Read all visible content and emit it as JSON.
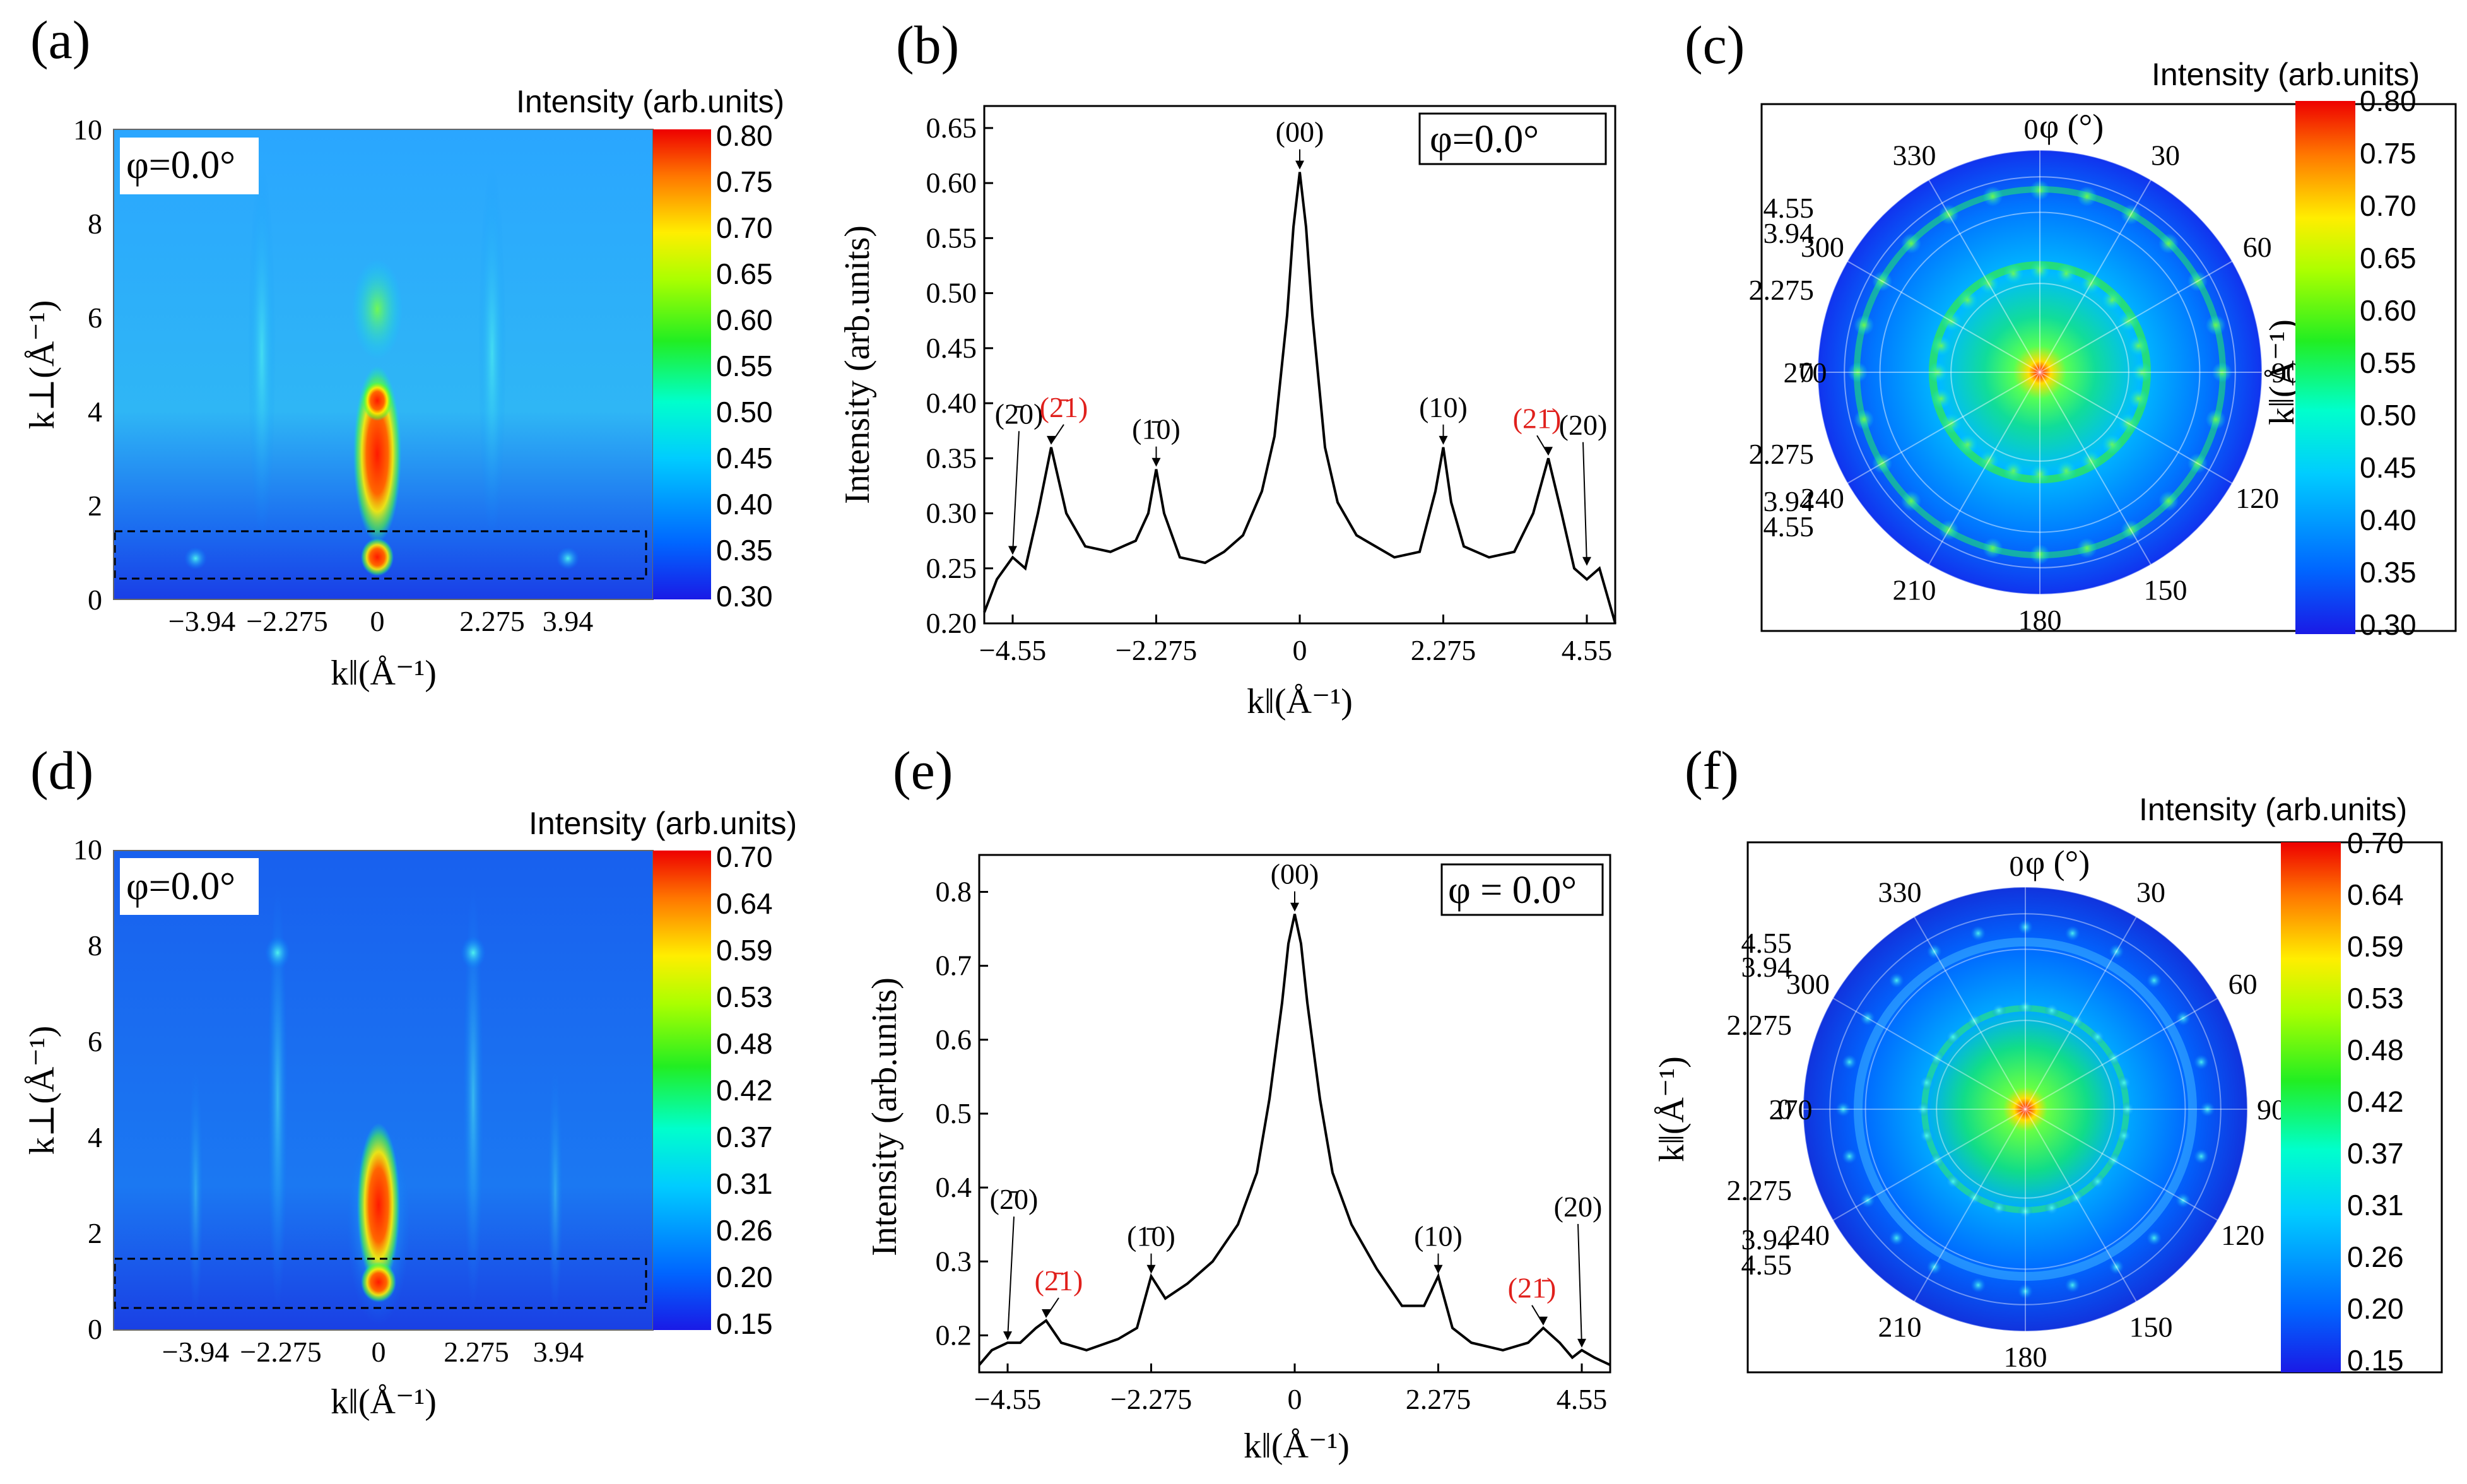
{
  "figure": {
    "panels": [
      {
        "id": "a",
        "label": "(a)",
        "phi": "φ=0.0°",
        "cbar_title": "Intensity (arb.units)",
        "cbar_ticks": [
          "0.80",
          "0.75",
          "0.70",
          "0.65",
          "0.60",
          "0.55",
          "0.50",
          "0.45",
          "0.40",
          "0.35",
          "0.30"
        ],
        "xlabel": "k‖(Å⁻¹)",
        "ylabel": "k⊥(Å⁻¹)",
        "xticks": [
          "−3.94",
          "−2.275",
          "0",
          "2.275",
          "3.94"
        ],
        "yticks": [
          "0",
          "2",
          "4",
          "6",
          "8",
          "10"
        ]
      },
      {
        "id": "b",
        "label": "(b)",
        "phi": "φ=0.0°",
        "xlabel": "k‖(Å⁻¹)",
        "ylabel": "Intensity (arb.units)",
        "xticks": [
          "−4.55",
          "−2.275",
          "0",
          "2.275",
          "4.55"
        ],
        "yticks": [
          "0.20",
          "0.25",
          "0.30",
          "0.35",
          "0.40",
          "0.45",
          "0.50",
          "0.55",
          "0.60",
          "0.65"
        ]
      },
      {
        "id": "c",
        "label": "(c)",
        "cbar_title": "Intensity (arb.units)",
        "cbar_ticks": [
          "0.80",
          "0.75",
          "0.70",
          "0.65",
          "0.60",
          "0.55",
          "0.50",
          "0.45",
          "0.40",
          "0.35",
          "0.30"
        ],
        "angle_title": "φ (°)",
        "angles": [
          "0",
          "30",
          "60",
          "90",
          "120",
          "150",
          "180",
          "210",
          "240",
          "270",
          "300",
          "330"
        ],
        "radial_ticks": [
          "4.55",
          "3.94",
          "2.275",
          "0",
          "2.275",
          "3.94",
          "4.55"
        ],
        "radial_label": "k‖(Å⁻¹)"
      },
      {
        "id": "d",
        "label": "(d)",
        "phi": "φ=0.0°",
        "cbar_title": "Intensity (arb.units)",
        "cbar_ticks": [
          "0.70",
          "0.64",
          "0.59",
          "0.53",
          "0.48",
          "0.42",
          "0.37",
          "0.31",
          "0.26",
          "0.20",
          "0.15"
        ],
        "xlabel": "k‖(Å⁻¹)",
        "ylabel": "k⊥(Å⁻¹)",
        "xticks": [
          "−3.94",
          "−2.275",
          "0",
          "2.275",
          "3.94"
        ],
        "yticks": [
          "0",
          "2",
          "4",
          "6",
          "8",
          "10"
        ]
      },
      {
        "id": "e",
        "label": "(e)",
        "phi": "φ = 0.0°",
        "xlabel": "k‖(Å⁻¹)",
        "ylabel": "Intensity (arb.units)",
        "xticks": [
          "−4.55",
          "−2.275",
          "0",
          "2.275",
          "4.55"
        ],
        "yticks": [
          "0.2",
          "0.3",
          "0.4",
          "0.5",
          "0.6",
          "0.7",
          "0.8"
        ]
      },
      {
        "id": "f",
        "label": "(f)",
        "cbar_title": "Intensity (arb.units)",
        "cbar_ticks": [
          "0.70",
          "0.64",
          "0.59",
          "0.53",
          "0.48",
          "0.42",
          "0.37",
          "0.31",
          "0.26",
          "0.20",
          "0.15"
        ],
        "angle_title": "φ (°)",
        "angles": [
          "0",
          "30",
          "60",
          "90",
          "120",
          "150",
          "180",
          "210",
          "240",
          "270",
          "300",
          "330"
        ],
        "radial_ticks": [
          "4.55",
          "3.94",
          "2.275",
          "0",
          "2.275",
          "3.94",
          "4.55"
        ],
        "radial_label": "k‖(Å⁻¹)"
      }
    ],
    "peak_labels": {
      "p00": "(00)",
      "p10": "(10)",
      "m10": "(1̄0)",
      "p20": "(20)",
      "m20": "(2̄0)",
      "m21": "(2̄1)",
      "p21": "(21̄)"
    },
    "colors": {
      "red_label": "#e0201c",
      "line": "#000000"
    }
  },
  "chart_data": [
    {
      "panel": "a",
      "type": "heatmap",
      "title": "",
      "xlabel": "k‖(Å⁻¹)",
      "ylabel": "k⊥(Å⁻¹)",
      "xlim": [
        -5.3,
        5.3
      ],
      "ylim": [
        0,
        10
      ],
      "colorbar_range": [
        0.3,
        0.8
      ],
      "features": [
        {
          "x": 0,
          "y": 2.8,
          "value": 0.8
        },
        {
          "x": 0,
          "y": 4.1,
          "value": 0.75
        },
        {
          "x": 0,
          "y": 1.0,
          "value": 0.78
        },
        {
          "x": 0,
          "y": 6.0,
          "value": 0.55
        },
        {
          "x": -3.94,
          "y": 0.9,
          "value": 0.45
        },
        {
          "x": 3.94,
          "y": 0.9,
          "value": 0.45
        }
      ]
    },
    {
      "panel": "b",
      "type": "line",
      "title": "",
      "xlabel": "k‖(Å⁻¹)",
      "ylabel": "Intensity (arb.units)",
      "xlim": [
        -5.0,
        5.0
      ],
      "ylim": [
        0.2,
        0.67
      ],
      "x": [
        -5.0,
        -4.8,
        -4.55,
        -4.35,
        -4.15,
        -3.94,
        -3.7,
        -3.4,
        -3.0,
        -2.6,
        -2.4,
        -2.275,
        -2.15,
        -1.9,
        -1.5,
        -1.2,
        -0.9,
        -0.6,
        -0.4,
        -0.2,
        -0.1,
        0,
        0.1,
        0.2,
        0.4,
        0.6,
        0.9,
        1.2,
        1.5,
        1.9,
        2.15,
        2.275,
        2.4,
        2.6,
        3.0,
        3.4,
        3.7,
        3.94,
        4.15,
        4.35,
        4.55,
        4.75,
        5.0
      ],
      "y": [
        0.21,
        0.24,
        0.26,
        0.25,
        0.3,
        0.36,
        0.3,
        0.27,
        0.265,
        0.275,
        0.3,
        0.34,
        0.3,
        0.26,
        0.255,
        0.265,
        0.28,
        0.32,
        0.37,
        0.48,
        0.56,
        0.61,
        0.56,
        0.48,
        0.36,
        0.31,
        0.28,
        0.27,
        0.26,
        0.265,
        0.32,
        0.36,
        0.31,
        0.27,
        0.26,
        0.265,
        0.3,
        0.35,
        0.3,
        0.25,
        0.24,
        0.25,
        0.2
      ],
      "annotations": [
        {
          "x": -4.55,
          "y": 0.26,
          "label": "(2̄0)"
        },
        {
          "x": -3.94,
          "y": 0.36,
          "label": "(2̄1)"
        },
        {
          "x": -2.275,
          "y": 0.34,
          "label": "(1̄0)"
        },
        {
          "x": 0,
          "y": 0.61,
          "label": "(00)"
        },
        {
          "x": 2.275,
          "y": 0.36,
          "label": "(10)"
        },
        {
          "x": 3.94,
          "y": 0.35,
          "label": "(21̄)"
        },
        {
          "x": 4.55,
          "y": 0.25,
          "label": "(20)"
        }
      ]
    },
    {
      "panel": "c",
      "type": "heatmap",
      "title": "",
      "coordinate": "polar",
      "angle_unit": "φ (°)",
      "colorbar_range": [
        0.3,
        0.8
      ],
      "rings_k": [
        2.275,
        3.94,
        4.55
      ],
      "center_value": 0.8
    },
    {
      "panel": "d",
      "type": "heatmap",
      "title": "",
      "xlabel": "k‖(Å⁻¹)",
      "ylabel": "k⊥(Å⁻¹)",
      "xlim": [
        -5.3,
        5.3
      ],
      "ylim": [
        0,
        10
      ],
      "colorbar_range": [
        0.15,
        0.7
      ],
      "features": [
        {
          "x": 0,
          "y": 2.5,
          "value": 0.7
        },
        {
          "x": 0,
          "y": 1.0,
          "value": 0.7
        },
        {
          "x": 0,
          "y": 3.6,
          "value": 0.55
        },
        {
          "x": -2.275,
          "y": 8.2,
          "value": 0.37
        },
        {
          "x": 2.275,
          "y": 8.2,
          "value": 0.37
        },
        {
          "x": -3.94,
          "y": 4.0,
          "value": 0.3
        },
        {
          "x": 3.94,
          "y": 4.0,
          "value": 0.3
        }
      ]
    },
    {
      "panel": "e",
      "type": "line",
      "title": "",
      "xlabel": "k‖(Å⁻¹)",
      "ylabel": "Intensity (arb.units)",
      "xlim": [
        -5.0,
        5.0
      ],
      "ylim": [
        0.15,
        0.85
      ],
      "x": [
        -5.0,
        -4.8,
        -4.55,
        -4.35,
        -4.1,
        -3.94,
        -3.7,
        -3.3,
        -2.8,
        -2.5,
        -2.275,
        -2.05,
        -1.7,
        -1.3,
        -0.9,
        -0.6,
        -0.4,
        -0.2,
        -0.1,
        0,
        0.1,
        0.2,
        0.4,
        0.6,
        0.9,
        1.3,
        1.7,
        2.05,
        2.275,
        2.5,
        2.8,
        3.3,
        3.7,
        3.94,
        4.2,
        4.4,
        4.55,
        4.75,
        5.0
      ],
      "y": [
        0.16,
        0.18,
        0.19,
        0.19,
        0.21,
        0.22,
        0.19,
        0.18,
        0.195,
        0.21,
        0.28,
        0.25,
        0.27,
        0.3,
        0.35,
        0.42,
        0.52,
        0.65,
        0.73,
        0.77,
        0.73,
        0.65,
        0.52,
        0.42,
        0.35,
        0.29,
        0.24,
        0.24,
        0.28,
        0.21,
        0.19,
        0.18,
        0.19,
        0.21,
        0.19,
        0.17,
        0.18,
        0.17,
        0.16
      ],
      "annotations": [
        {
          "x": -4.55,
          "y": 0.19,
          "label": "(2̄0)"
        },
        {
          "x": -3.94,
          "y": 0.22,
          "label": "(2̄1)"
        },
        {
          "x": -2.275,
          "y": 0.28,
          "label": "(1̄0)"
        },
        {
          "x": 0,
          "y": 0.77,
          "label": "(00)"
        },
        {
          "x": 2.275,
          "y": 0.28,
          "label": "(10)"
        },
        {
          "x": 3.94,
          "y": 0.21,
          "label": "(21̄)"
        },
        {
          "x": 4.55,
          "y": 0.18,
          "label": "(20)"
        }
      ]
    },
    {
      "panel": "f",
      "type": "heatmap",
      "title": "",
      "coordinate": "polar",
      "angle_unit": "φ (°)",
      "colorbar_range": [
        0.15,
        0.7
      ],
      "rings_k": [
        2.275,
        3.94,
        4.55
      ],
      "center_value": 0.7
    }
  ]
}
